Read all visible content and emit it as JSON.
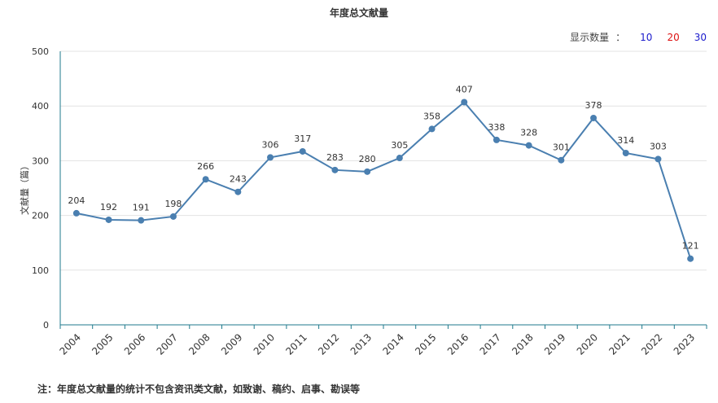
{
  "title": "年度总文献量",
  "count_selector": {
    "label": "显示数量",
    "separator": "：",
    "options": [
      {
        "label": "10",
        "color": "#1a1acc"
      },
      {
        "label": "20",
        "color": "#dd1111"
      },
      {
        "label": "30",
        "color": "#1a1acc"
      }
    ]
  },
  "footnote": "注：年度总文献量的统计不包含资讯类文献，如致谢、稿约、启事、勘误等",
  "chart_data": {
    "type": "line",
    "title": "年度总文献量",
    "xlabel": "",
    "ylabel": "文献量（篇）",
    "categories": [
      "2004",
      "2005",
      "2006",
      "2007",
      "2008",
      "2009",
      "2010",
      "2011",
      "2012",
      "2013",
      "2014",
      "2015",
      "2016",
      "2017",
      "2018",
      "2019",
      "2020",
      "2021",
      "2022",
      "2023"
    ],
    "series": [
      {
        "values": [
          204,
          192,
          191,
          198,
          266,
          243,
          306,
          317,
          283,
          280,
          305,
          358,
          407,
          338,
          328,
          301,
          378,
          314,
          303,
          121
        ]
      }
    ],
    "ylim": [
      0,
      500
    ],
    "yticks": [
      0,
      100,
      200,
      300,
      400,
      500
    ],
    "grid": true,
    "legend": "none",
    "line_color": "#4a7fb0",
    "axis_color": "#1f7a8c"
  }
}
